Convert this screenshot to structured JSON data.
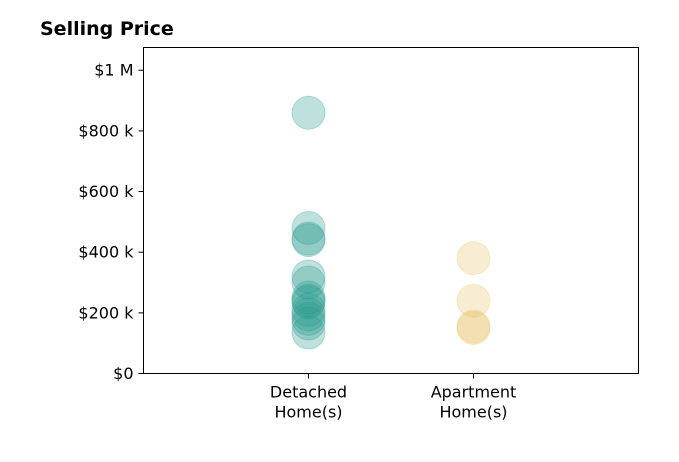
{
  "chart_data": {
    "type": "scatter",
    "title": "Selling Price",
    "xlabel": "",
    "ylabel": "",
    "categories": [
      "Detached\nHome(s)",
      "Apartment\nHome(s)"
    ],
    "y_ticks": [
      {
        "value": 0,
        "label": "$0"
      },
      {
        "value": 200000,
        "label": "$200 k"
      },
      {
        "value": 400000,
        "label": "$400 k"
      },
      {
        "value": 600000,
        "label": "$600 k"
      },
      {
        "value": 800000,
        "label": "$800 k"
      },
      {
        "value": 1000000,
        "label": "$1 M"
      }
    ],
    "x_range": [
      -1,
      2
    ],
    "ylim": [
      0,
      1075000
    ],
    "grid": false,
    "series": [
      {
        "category_index": 0,
        "color": "#2a9d8f",
        "values": [
          860000,
          480000,
          445000,
          440000,
          320000,
          300000,
          250000,
          240000,
          235000,
          210000,
          195000,
          180000,
          165000,
          135000
        ]
      },
      {
        "category_index": 1,
        "color": "#e9c46a",
        "values": [
          380000,
          240000,
          155000,
          150000
        ]
      }
    ]
  }
}
